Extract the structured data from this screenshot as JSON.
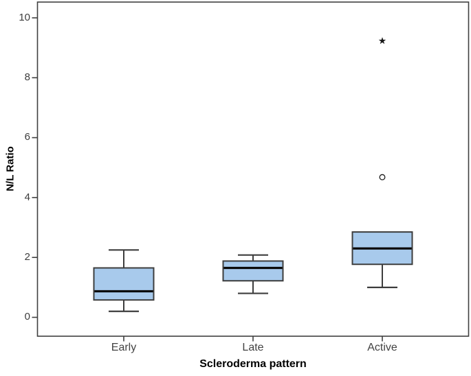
{
  "figure": {
    "y_axis": {
      "title": "N/L Ratio",
      "tick_labels": [
        "0",
        "2",
        "4",
        "6",
        "8",
        "10"
      ]
    },
    "x_axis": {
      "title": "Scleroderma pattern",
      "category_labels": [
        "Early",
        "Late",
        "Active"
      ]
    }
  },
  "chart_data": {
    "type": "boxplot",
    "title": "",
    "xlabel": "Scleroderma pattern",
    "ylabel": "N/L Ratio",
    "categories": [
      "Early",
      "Late",
      "Active"
    ],
    "yticks": [
      0,
      2,
      4,
      6,
      8,
      10
    ],
    "ylim": [
      -0.6,
      10.5
    ],
    "grid": false,
    "legend": "none",
    "series": [
      {
        "name": "Early",
        "whisker_low": 0.2,
        "q1": 0.58,
        "median": 0.87,
        "q3": 1.65,
        "whisker_high": 2.25,
        "outliers": [],
        "extremes": []
      },
      {
        "name": "Late",
        "whisker_low": 0.8,
        "q1": 1.22,
        "median": 1.65,
        "q3": 1.88,
        "whisker_high": 2.08,
        "outliers": [],
        "extremes": []
      },
      {
        "name": "Active",
        "whisker_low": 1.0,
        "q1": 1.77,
        "median": 2.3,
        "q3": 2.85,
        "whisker_high": null,
        "outliers": [
          4.68
        ],
        "extremes": [
          9.23
        ]
      }
    ],
    "colors": {
      "box_fill": "#A8CAEC",
      "box_stroke": "#3D3D3D",
      "median": "#0A0A0A",
      "whisker": "#3D3D3D",
      "frame": "#3F3F3F",
      "tick_label": "#3C3C3C",
      "axis_title": "#000000",
      "background": "#FFFFFF"
    }
  }
}
